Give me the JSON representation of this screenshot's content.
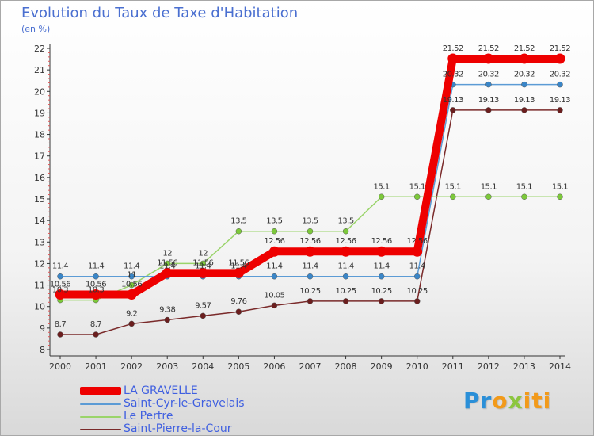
{
  "chart_data": {
    "type": "line",
    "title": "Evolution du Taux de Taxe d'Habitation",
    "ylabel": "(en %)",
    "xlabel": "",
    "ylim": [
      8,
      22
    ],
    "yticks": [
      8,
      9,
      10,
      11,
      12,
      13,
      14,
      15,
      16,
      17,
      18,
      19,
      20,
      21,
      22
    ],
    "x": [
      "2000",
      "2001",
      "2002",
      "2003",
      "2004",
      "2005",
      "2006",
      "2007",
      "2008",
      "2009",
      "2010",
      "2011",
      "2012",
      "2013",
      "2014"
    ],
    "series": [
      {
        "name": "LA GRAVELLE",
        "color": "#ee0000",
        "values": [
          10.56,
          10.56,
          10.56,
          11.56,
          11.56,
          11.56,
          12.56,
          12.56,
          12.56,
          12.56,
          12.56,
          21.52,
          21.52,
          21.52,
          21.52
        ],
        "labels": [
          "10.56",
          "10.56",
          "10.56",
          "11.56",
          "11.56",
          "11.56",
          "12.56",
          "12.56",
          "12.56",
          "12.56",
          "12.56",
          "21.52",
          "21.52",
          "21.52",
          "21.52"
        ]
      },
      {
        "name": "Saint-Cyr-le-Gravelais",
        "color": "#5b9bd5",
        "marker_color": "#3a86c8",
        "values": [
          11.4,
          11.4,
          11.4,
          11.4,
          11.4,
          11.4,
          11.4,
          11.4,
          11.4,
          11.4,
          11.4,
          20.32,
          20.32,
          20.32,
          20.32
        ],
        "labels": [
          "11.4",
          "11.4",
          "11.4",
          "11.4",
          "11.4",
          "11.4",
          "11.4",
          "11.4",
          "11.4",
          "11.4",
          "11.4",
          "20.32",
          "20.32",
          "20.32",
          "20.32"
        ]
      },
      {
        "name": "Le Pertre",
        "color": "#9ad46a",
        "marker_color": "#7cc93a",
        "values": [
          10.3,
          10.3,
          11.0,
          12.0,
          12.0,
          13.5,
          13.5,
          13.5,
          13.5,
          15.1,
          15.1,
          15.1,
          15.1,
          15.1,
          15.1
        ],
        "labels": [
          "10.3",
          "10.3",
          "11",
          "12",
          "12",
          "13.5",
          "13.5",
          "13.5",
          "13.5",
          "15.1",
          "15.1",
          "15.1",
          "15.1",
          "15.1",
          "15.1"
        ]
      },
      {
        "name": "Saint-Pierre-la-Cour",
        "color": "#7a2a2a",
        "marker_color": "#6b1e1e",
        "values": [
          8.7,
          8.7,
          9.2,
          9.38,
          9.57,
          9.76,
          10.05,
          10.25,
          10.25,
          10.25,
          10.25,
          19.13,
          19.13,
          19.13,
          19.13
        ],
        "labels": [
          "8.7",
          "8.7",
          "9.2",
          "9.38",
          "9.57",
          "9.76",
          "10.05",
          "10.25",
          "10.25",
          "10.25",
          "10.25",
          "19.13",
          "19.13",
          "19.13",
          "19.13"
        ]
      }
    ],
    "grid": false,
    "legend_position": "bottom-left"
  },
  "legend": {
    "items": [
      {
        "label": "LA GRAVELLE",
        "color": "#ee0000"
      },
      {
        "label": "Saint-Cyr-le-Gravelais",
        "color": "#5b9bd5"
      },
      {
        "label": "Le Pertre",
        "color": "#9ad46a"
      },
      {
        "label": "Saint-Pierre-la-Cour",
        "color": "#7a2a2a"
      }
    ]
  },
  "logo": {
    "part1": "Pr",
    "part2": "o",
    "part3": "x",
    "part4": "iti"
  },
  "colors": {
    "title": "#4a6fd0",
    "axis": "#333333",
    "tick_text": "#333333"
  }
}
